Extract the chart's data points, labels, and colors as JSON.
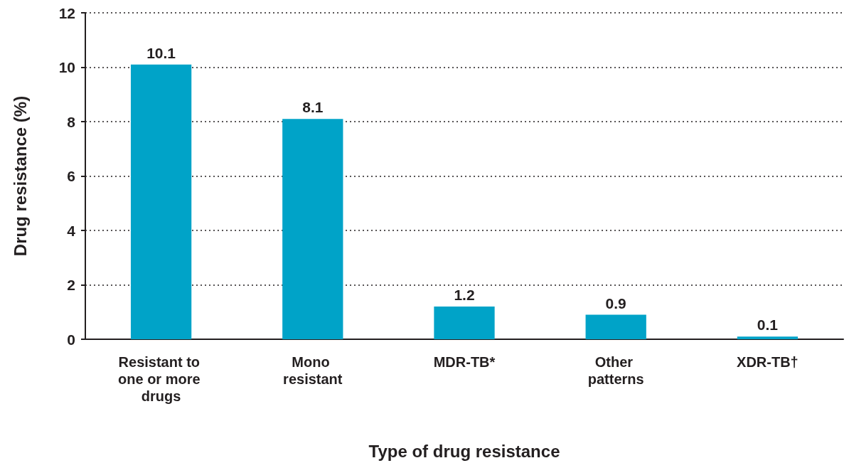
{
  "chart_data": {
    "type": "bar",
    "xlabel": "Type of drug resistance",
    "ylabel": "Drug resistance (%)",
    "categories": [
      "Resistant to one or more drugs",
      "Mono resistant",
      "MDR-TB*",
      "Other patterns",
      "XDR-TB†"
    ],
    "values": [
      10.1,
      8.1,
      1.2,
      0.9,
      0.1
    ],
    "color": "#00a3c8",
    "ylim": [
      0,
      12
    ],
    "yticks": [
      0,
      2,
      4,
      6,
      8,
      10,
      12
    ],
    "grid": "y",
    "data_labels": true
  }
}
